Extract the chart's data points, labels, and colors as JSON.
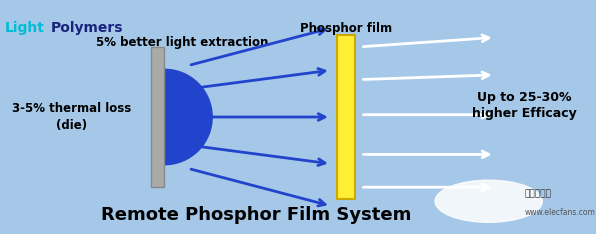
{
  "bg_color": "#a5c8e8",
  "title": "Remote Phosphor Film System",
  "title_fontsize": 13,
  "logo_light": "Light",
  "logo_polymers": "Polymers",
  "logo_light_color": "#00bcd4",
  "logo_polymers_color": "#1a237e",
  "text_better_light": "5% better light extraction",
  "text_thermal": "3-5% thermal loss\n(die)",
  "text_phosphor": "Phosphor film",
  "text_efficacy": "Up to 25-30%\nhigher Efficacy",
  "led_color": "#2244cc",
  "plate_color": "#aaaaaa",
  "plate_edge_color": "#888888",
  "phosphor_color": "#ffee33",
  "phosphor_edge_color": "#ccaa00",
  "blue_arrow_color": "#2244cc",
  "white_arrow_color": "#ffffff",
  "watermark_text": "www.elecfans.com",
  "figw": 5.96,
  "figh": 2.34,
  "dpi": 100
}
